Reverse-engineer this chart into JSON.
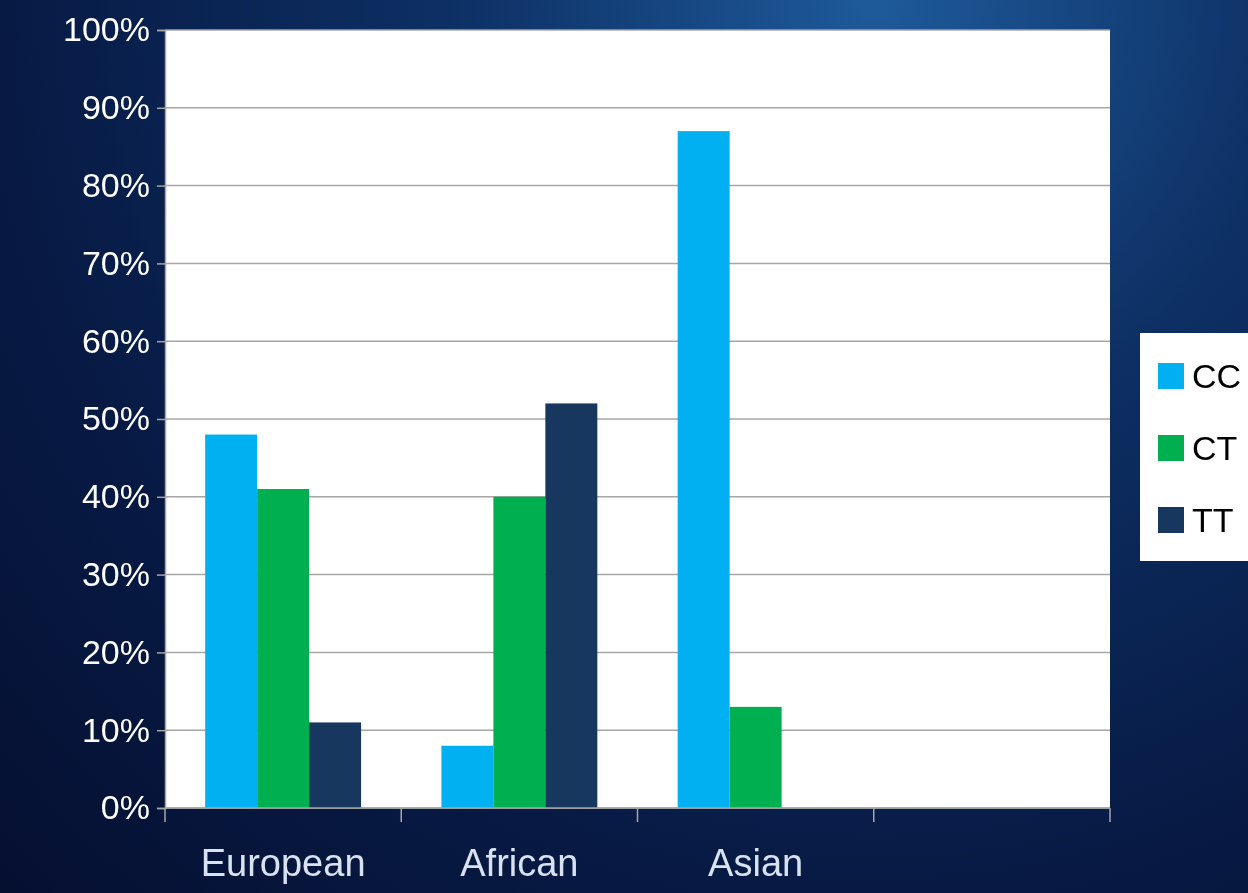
{
  "chart_data": {
    "type": "bar",
    "categories": [
      "European",
      "African",
      "Asian",
      null
    ],
    "series": [
      {
        "name": "CC",
        "color": "#00b0f0",
        "values": [
          48,
          8,
          87,
          null
        ]
      },
      {
        "name": "CT",
        "color": "#00b050",
        "values": [
          41,
          40,
          13,
          null
        ]
      },
      {
        "name": "TT",
        "color": "#17375e",
        "values": [
          11,
          52,
          0,
          null
        ]
      }
    ],
    "ylim": [
      0,
      100
    ],
    "yticks": [
      {
        "value": 0,
        "label": "0%"
      },
      {
        "value": 10,
        "label": "10%"
      },
      {
        "value": 20,
        "label": "20%"
      },
      {
        "value": 30,
        "label": "30%"
      },
      {
        "value": 40,
        "label": "40%"
      },
      {
        "value": 50,
        "label": "50%"
      },
      {
        "value": 60,
        "label": "60%"
      },
      {
        "value": 70,
        "label": "70%"
      },
      {
        "value": 80,
        "label": "80%"
      },
      {
        "value": 90,
        "label": "90%"
      },
      {
        "value": 100,
        "label": "100%"
      }
    ],
    "grid": "y",
    "legend": "right"
  }
}
